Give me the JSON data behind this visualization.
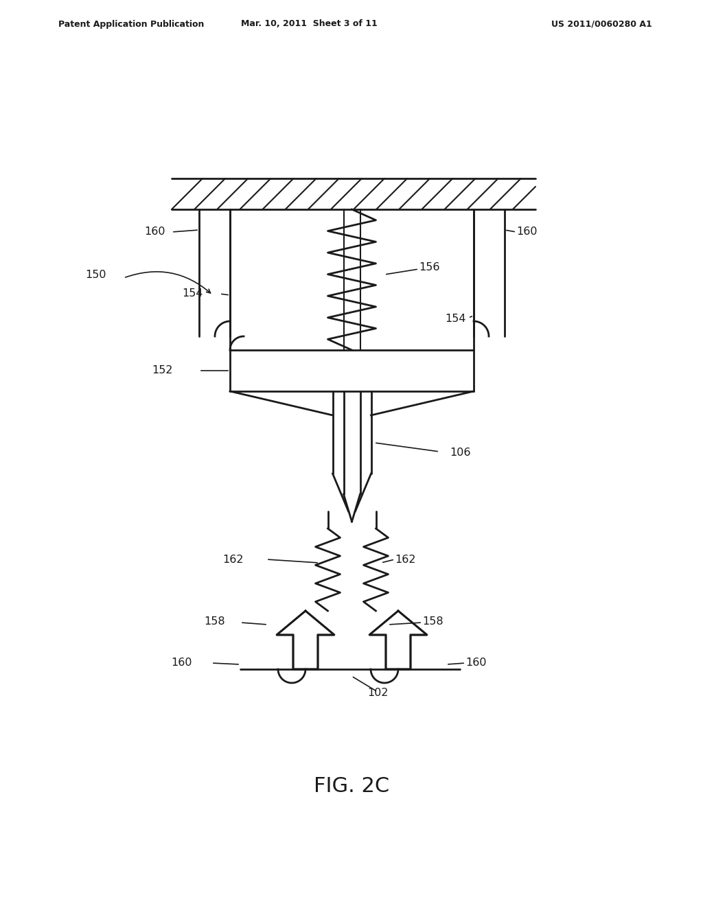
{
  "bg_color": "#ffffff",
  "line_color": "#1a1a1a",
  "line_width": 2.0,
  "header_left": "Patent Application Publication",
  "header_mid": "Mar. 10, 2011  Sheet 3 of 11",
  "header_right": "US 2011/0060280 A1",
  "fig_label": "FIG. 2C",
  "labels": {
    "160_tl": "160",
    "160_tr": "160",
    "160_bl": "160",
    "160_br": "160",
    "150": "150",
    "154_l": "154",
    "154_r": "154",
    "156": "156",
    "152": "152",
    "106": "106",
    "162_l": "162",
    "162_r": "162",
    "158_l": "158",
    "158_r": "158",
    "102": "102"
  }
}
